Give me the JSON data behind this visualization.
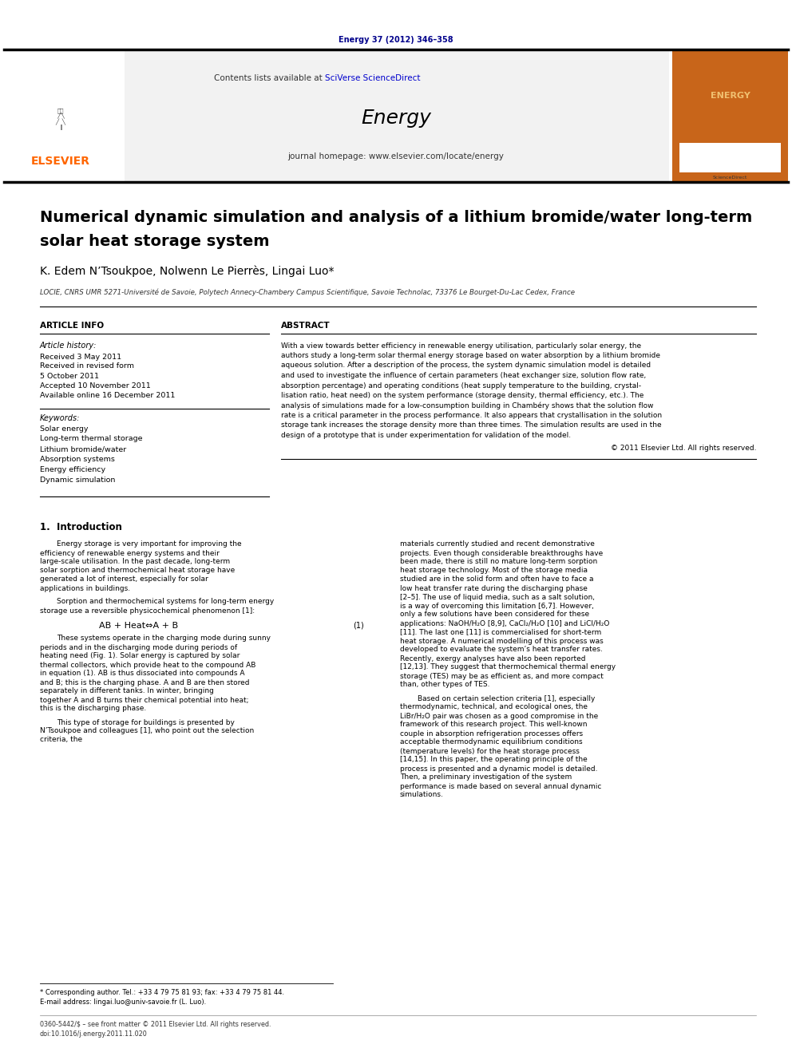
{
  "page_width": 9.92,
  "page_height": 13.23,
  "bg_color": "#ffffff",
  "top_link_text": "Energy 37 (2012) 346–358",
  "top_link_color": "#00008B",
  "header_text1": "Contents lists available at ",
  "header_sciverse": "SciVerse ScienceDirect",
  "header_sciverse_color": "#0000CD",
  "header_journal": "Energy",
  "header_homepage_text": "journal homepage: www.elsevier.com/locate/energy",
  "title_line1": "Numerical dynamic simulation and analysis of a lithium bromide/water long-term",
  "title_line2": "solar heat storage system",
  "authors": "K. Edem N’Tsoukpoe, Nolwenn Le Pierrès, Lingai Luo*",
  "affiliation": "LOCIE, CNRS UMR 5271-Université de Savoie, Polytech Annecy-Chambery Campus Scientifique, Savoie Technolac, 73376 Le Bourget-Du-Lac Cedex, France",
  "article_info_label": "ARTICLE INFO",
  "abstract_label": "ABSTRACT",
  "article_history_label": "Article history:",
  "received1": "Received 3 May 2011",
  "received2": "Received in revised form",
  "received2b": "5 October 2011",
  "accepted": "Accepted 10 November 2011",
  "available": "Available online 16 December 2011",
  "keywords_label": "Keywords:",
  "keywords": [
    "Solar energy",
    "Long-term thermal storage",
    "Lithium bromide/water",
    "Absorption systems",
    "Energy efficiency",
    "Dynamic simulation"
  ],
  "abstract_copyright": "© 2011 Elsevier Ltd. All rights reserved.",
  "intro_title": "1.  Introduction",
  "intro_col1_para1": "Energy storage is very important for improving the efficiency of renewable energy systems and their large-scale utilisation. In the past decade, long-term solar sorption and thermochemical heat storage have generated a lot of interest, especially for solar applications in buildings.",
  "intro_col1_para2": "Sorption and thermochemical systems for long-term energy storage use a reversible physicochemical phenomenon [1]:",
  "equation": "AB + Heat⇔A + B",
  "equation_num": "(1)",
  "intro_col1_para3": "These systems operate in the charging mode during sunny periods and in the discharging mode during periods of heating need (Fig. 1). Solar energy is captured by solar thermal collectors, which provide heat to the compound AB in equation (1). AB is thus dissociated into compounds A and B; this is the charging phase. A and B are then stored separately in different tanks. In winter, bringing together A and B turns their chemical potential into heat; this is the discharging phase.",
  "intro_col1_para4": "This type of storage for buildings is presented by N’Tsoukpoe and colleagues [1], who point out the selection criteria, the",
  "intro_col2_para1": "materials currently studied and recent demonstrative projects. Even though considerable breakthroughs have been made, there is still no mature long-term sorption heat storage technology. Most of the storage media studied are in the solid form and often have to face a low heat transfer rate during the discharging phase [2–5]. The use of liquid media, such as a salt solution, is a way of overcoming this limitation [6,7]. However, only a few solutions have been considered for these applications: NaOH/H₂O [8,9], CaCl₂/H₂O [10] and LiCl/H₂O [11]. The last one [11] is commercialised for short-term heat storage. A numerical modelling of this process was developed to evaluate the system’s heat transfer rates. Recently, exergy analyses have also been reported [12,13]. They suggest that thermochemical thermal energy storage (TES) may be as efficient as, and more compact than, other types of TES.",
  "intro_col2_para2": "Based on certain selection criteria [1], especially thermodynamic, technical, and ecological ones, the LiBr/H₂O pair was chosen as a good compromise in the framework of this research project. This well-known couple in absorption refrigeration processes offers acceptable thermodynamic equilibrium conditions (temperature levels) for the heat storage process [14,15]. In this paper, the operating principle of the process is presented and a dynamic model is detailed. Then, a preliminary investigation of the system performance is made based on several annual dynamic simulations.",
  "footnote_star": "* Corresponding author. Tel.: +33 4 79 75 81 93; fax: +33 4 79 75 81 44.",
  "footnote_email": "E-mail address: lingai.luo@univ-savoie.fr (L. Luo).",
  "footer_text1": "0360-5442/$ – see front matter © 2011 Elsevier Ltd. All rights reserved.",
  "footer_text2": "doi:10.1016/j.energy.2011.11.020",
  "elsevier_color": "#FF6600",
  "black": "#000000",
  "dark_gray": "#333333",
  "medium_gray": "#666666",
  "light_gray": "#f2f2f2",
  "line_color": "#000000",
  "link_color": "#0000CD",
  "abstract_lines": [
    "With a view towards better efficiency in renewable energy utilisation, particularly solar energy, the",
    "authors study a long-term solar thermal energy storage based on water absorption by a lithium bromide",
    "aqueous solution. After a description of the process, the system dynamic simulation model is detailed",
    "and used to investigate the influence of certain parameters (heat exchanger size, solution flow rate,",
    "absorption percentage) and operating conditions (heat supply temperature to the building, crystal-",
    "lisation ratio, heat need) on the system performance (storage density, thermal efficiency, etc.). The",
    "analysis of simulations made for a low-consumption building in Chambéry shows that the solution flow",
    "rate is a critical parameter in the process performance. It also appears that crystallisation in the solution",
    "storage tank increases the storage density more than three times. The simulation results are used in the",
    "design of a prototype that is under experimentation for validation of the model."
  ]
}
